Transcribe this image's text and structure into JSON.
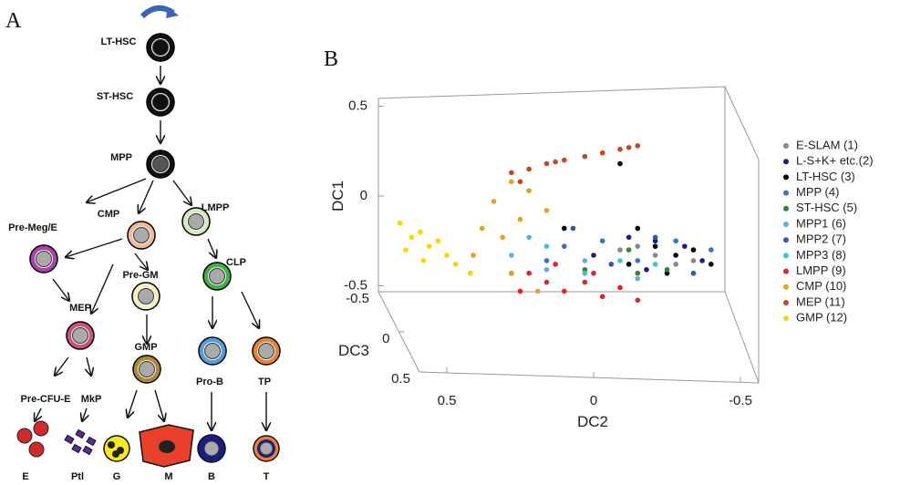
{
  "panel_a": {
    "label": "A",
    "nodes": [
      "LT-HSC",
      "ST-HSC",
      "MPP",
      "Pre-Meg/E",
      "CMP",
      "LMPP",
      "Pre-GM",
      "CLP",
      "MEP",
      "GMP",
      "Pro-B",
      "TP",
      "Pre-CFU-E",
      "MkP",
      "E",
      "Ptl",
      "G",
      "M",
      "B",
      "T"
    ]
  },
  "chart_data": {
    "type": "scatter",
    "panel_label": "B",
    "xlabel": "DC2",
    "ylabel": "DC1",
    "zlabel": "DC3",
    "xlim": [
      0.7,
      -0.6
    ],
    "ylim": [
      -0.6,
      0.6
    ],
    "zlim": [
      -0.5,
      0.5
    ],
    "xticks": [
      0.5,
      0,
      -0.5
    ],
    "yticks": [
      0.5,
      0,
      -0.5
    ],
    "zticks": [
      -0.5,
      0,
      0.5
    ],
    "series": [
      {
        "name": "E-SLAM (1)",
        "color": "#888888",
        "x": [
          -0.15,
          -0.21,
          -0.34,
          -0.09,
          -0.28
        ],
        "y": [
          -0.28,
          -0.33,
          -0.36,
          -0.3,
          -0.38
        ]
      },
      {
        "name": "L-S+K+ etc.(2)",
        "color": "#1c1c86",
        "x": [
          -0.12,
          -0.21,
          -0.31,
          -0.37,
          -0.18,
          0.0
        ],
        "y": [
          -0.23,
          -0.25,
          -0.28,
          -0.36,
          -0.41,
          -0.33
        ]
      },
      {
        "name": "LT-HSC (3)",
        "color": "#000000",
        "x": [
          -0.09,
          -0.15,
          -0.21,
          -0.28,
          -0.34,
          -0.4,
          -0.25,
          -0.12,
          0.1,
          0.28
        ],
        "y": [
          0.18,
          -0.18,
          -0.28,
          -0.33,
          -0.3,
          -0.38,
          -0.43,
          -0.38,
          -0.18,
          -0.43
        ]
      },
      {
        "name": "MPP (4)",
        "color": "#3a6fd0",
        "x": [
          0.1,
          -0.03,
          -0.15,
          -0.28,
          -0.4,
          0.16
        ],
        "y": [
          -0.28,
          -0.25,
          -0.36,
          -0.25,
          -0.3,
          -0.36
        ]
      },
      {
        "name": "ST-HSC (5)",
        "color": "#2a8a2a",
        "x": [
          -0.15,
          -0.25,
          -0.12,
          0.03
        ],
        "y": [
          -0.43,
          -0.41,
          -0.3,
          -0.41
        ]
      },
      {
        "name": "MPP1 (6)",
        "color": "#5ab0e6",
        "x": [
          0.28,
          0.16,
          0.03,
          -0.15,
          0.22
        ],
        "y": [
          -0.33,
          -0.41,
          -0.36,
          -0.46,
          -0.23
        ]
      },
      {
        "name": "MPP2 (7)",
        "color": "#2a5aa8",
        "x": [
          0.07,
          -0.06,
          -0.21,
          -0.34
        ],
        "y": [
          -0.18,
          -0.38,
          -0.23,
          -0.43
        ]
      },
      {
        "name": "MPP3 (8)",
        "color": "#40c4c4",
        "x": [
          0.16,
          0.03,
          -0.09,
          -0.21
        ],
        "y": [
          -0.28,
          -0.43,
          -0.36,
          -0.38
        ]
      },
      {
        "name": "LMPP (9)",
        "color": "#e8202a",
        "x": [
          0.22,
          0.16,
          0.1,
          0.03,
          -0.03,
          -0.09,
          -0.15,
          0.13,
          0.0,
          0.25
        ],
        "y": [
          -0.43,
          -0.48,
          -0.53,
          -0.48,
          -0.56,
          -0.51,
          -0.58,
          -0.38,
          -0.43,
          -0.53
        ]
      },
      {
        "name": "CMP (10)",
        "color": "#e8a020",
        "x": [
          0.34,
          0.28,
          0.22,
          0.38,
          0.31,
          0.25,
          0.16,
          0.41,
          0.28,
          0.19
        ],
        "y": [
          -0.03,
          0.08,
          0.03,
          -0.18,
          -0.23,
          -0.13,
          -0.08,
          -0.33,
          -0.43,
          -0.53
        ]
      },
      {
        "name": "MEP (11)",
        "color": "#c8451e",
        "x": [
          -0.15,
          -0.09,
          -0.03,
          0.03,
          0.1,
          0.16,
          0.22,
          0.28,
          -0.12,
          0.13,
          0.25
        ],
        "y": [
          0.28,
          0.26,
          0.24,
          0.22,
          0.2,
          0.18,
          0.15,
          0.13,
          0.27,
          0.19,
          0.08
        ]
      },
      {
        "name": "GMP (12)",
        "color": "#f5d800",
        "x": [
          0.66,
          0.62,
          0.59,
          0.56,
          0.53,
          0.5,
          0.47,
          0.64,
          0.42,
          0.58
        ],
        "y": [
          -0.15,
          -0.23,
          -0.2,
          -0.28,
          -0.25,
          -0.33,
          -0.38,
          -0.3,
          -0.43,
          -0.36
        ]
      }
    ]
  }
}
